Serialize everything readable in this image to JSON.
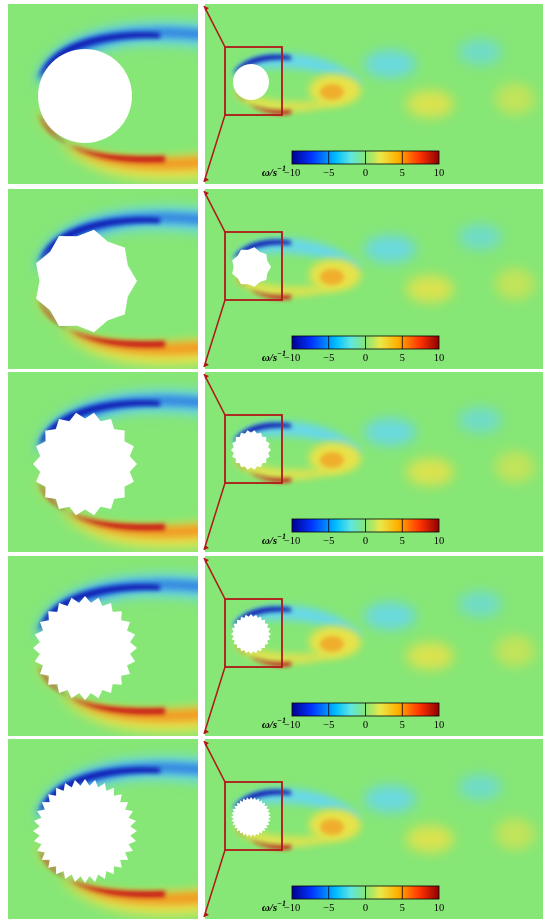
{
  "colorbar": {
    "label_main": "ω/s",
    "label_sup": "−1",
    "ticks": [
      "−10",
      "−5",
      "0",
      "5",
      "10"
    ]
  },
  "colors": {
    "background_field": "#86e676",
    "negative_core": "#0b1fb4",
    "negative_mid": "#2f7fe0",
    "negative_light": "#68d8e8",
    "positive_light": "#e8e24a",
    "positive_mid": "#f29a22",
    "positive_core": "#c81414",
    "zoom_box": "#b01818"
  },
  "panels": [
    {
      "variant": "smooth cylinder",
      "teeth": 0
    },
    {
      "variant": "wavy cylinder",
      "teeth": 9
    },
    {
      "variant": "serrated cylinder",
      "teeth": 18
    },
    {
      "variant": "serrated cylinder",
      "teeth": 24
    },
    {
      "variant": "serrated cylinder",
      "teeth": 32
    }
  ]
}
